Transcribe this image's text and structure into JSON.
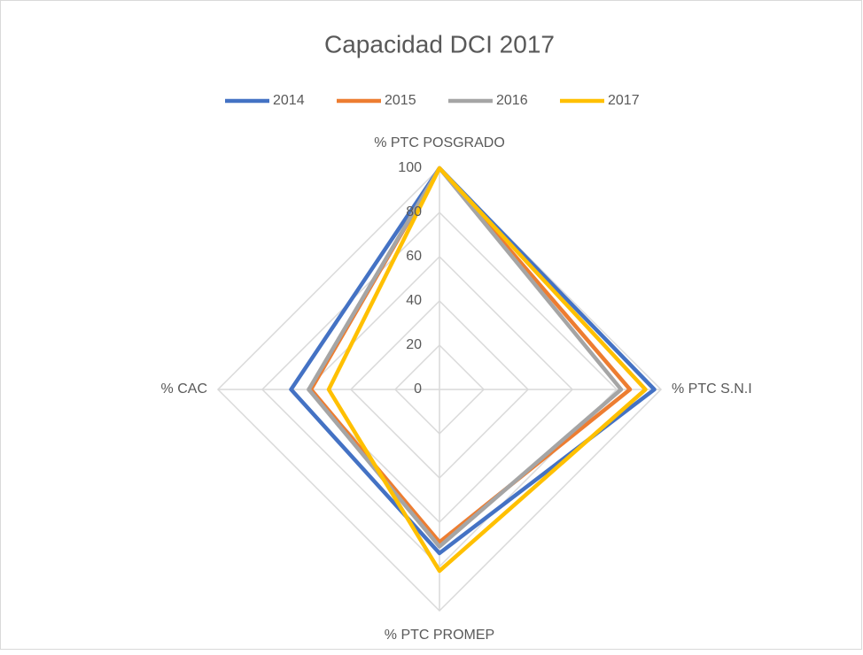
{
  "chart_data": {
    "type": "radar",
    "title": "Capacidad DCI 2017",
    "categories": [
      "% PTC POSGRADO",
      "% PTC S.N.I",
      "% PTC PROMEP",
      "% CAC"
    ],
    "series": [
      {
        "name": "2014",
        "color": "#4472c4",
        "values": [
          100,
          97,
          74,
          67
        ]
      },
      {
        "name": "2015",
        "color": "#ed7d31",
        "values": [
          100,
          86,
          69,
          58
        ]
      },
      {
        "name": "2016",
        "color": "#a5a5a5",
        "values": [
          100,
          82,
          71,
          59
        ]
      },
      {
        "name": "2017",
        "color": "#ffc000",
        "values": [
          100,
          93,
          82,
          50
        ]
      }
    ],
    "ylim": [
      0,
      100
    ],
    "yticks": [
      0,
      20,
      40,
      60,
      80,
      100
    ],
    "grid": true,
    "legend": "top"
  }
}
